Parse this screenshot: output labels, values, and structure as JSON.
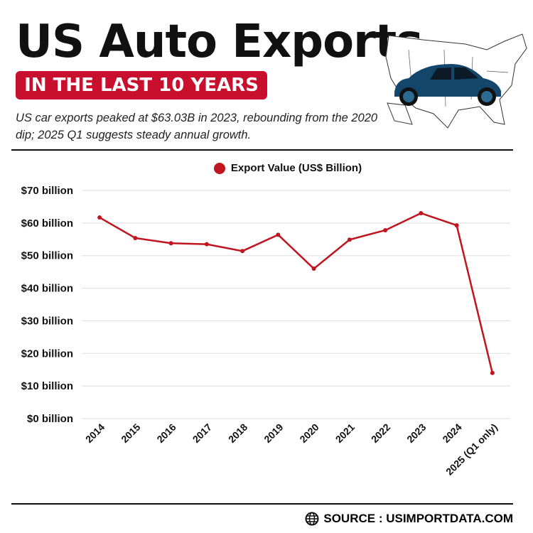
{
  "header": {
    "title": "US Auto Exports",
    "badge": "IN THE LAST 10 YEARS",
    "subtitle": "US car exports peaked at $63.03B in 2023, rebounding from the 2020 dip; 2025 Q1 suggests steady annual growth."
  },
  "footer": {
    "source": "SOURCE : USIMPORTDATA.COM",
    "icon": "globe-icon"
  },
  "illustration": {
    "icons": [
      "us-map-icon",
      "car-icon"
    ],
    "car_color": "#14466b"
  },
  "chart_data": {
    "type": "line",
    "categories": [
      "2014",
      "2015",
      "2016",
      "2017",
      "2018",
      "2019",
      "2020",
      "2021",
      "2022",
      "2023",
      "2024",
      "2025 (Q1 only)"
    ],
    "series": [
      {
        "name": "Export Value (US$ Billion)",
        "values": [
          61.7,
          55.4,
          53.8,
          53.5,
          51.4,
          56.4,
          46.0,
          54.9,
          57.8,
          63.03,
          59.3,
          14.0
        ],
        "color": "#c0141e"
      }
    ],
    "yticks": [
      "$0 billion",
      "$10 billion",
      "$20 billion",
      "$30 billion",
      "$40 billion",
      "$50 billion",
      "$60 billion",
      "$70 billion"
    ],
    "ylim": [
      0,
      70
    ],
    "grid": true,
    "legend": "top"
  }
}
